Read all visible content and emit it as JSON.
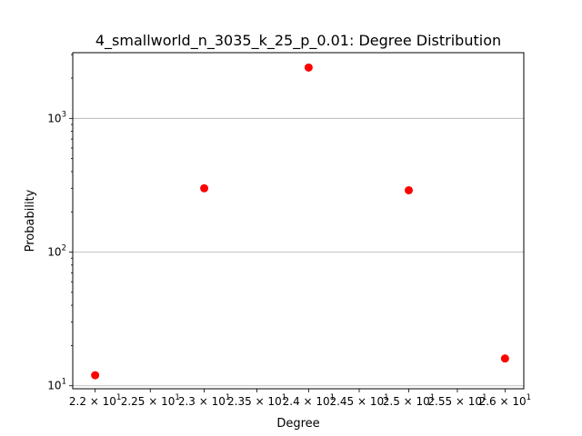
{
  "chart_data": {
    "type": "scatter",
    "title": "4_smallworld_n_3035_k_25_p_0.01: Degree Distribution",
    "xlabel": "Degree",
    "ylabel": "Probability",
    "x_scale": "log",
    "y_scale": "log",
    "xlim": [
      21.8,
      26.2
    ],
    "ylim": [
      9.5,
      3100
    ],
    "grid": "y-major",
    "marker_color": "#ff0000",
    "points": [
      {
        "x": 22,
        "y": 12
      },
      {
        "x": 23,
        "y": 300
      },
      {
        "x": 24,
        "y": 2400
      },
      {
        "x": 25,
        "y": 290
      },
      {
        "x": 26,
        "y": 16
      }
    ],
    "x_ticks": [
      {
        "value": 22,
        "mantissa": "2.2",
        "exp": "1"
      },
      {
        "value": 22.5,
        "mantissa": "2.25",
        "exp": "1"
      },
      {
        "value": 23,
        "mantissa": "2.3",
        "exp": "1"
      },
      {
        "value": 23.5,
        "mantissa": "2.35",
        "exp": "1"
      },
      {
        "value": 24,
        "mantissa": "2.4",
        "exp": "1"
      },
      {
        "value": 24.5,
        "mantissa": "2.45",
        "exp": "1"
      },
      {
        "value": 25,
        "mantissa": "2.5",
        "exp": "1"
      },
      {
        "value": 25.5,
        "mantissa": "2.55",
        "exp": "1"
      },
      {
        "value": 26,
        "mantissa": "2.6",
        "exp": "1"
      }
    ],
    "y_ticks": [
      {
        "value": 10,
        "base": "10",
        "exp": "1"
      },
      {
        "value": 100,
        "base": "10",
        "exp": "2"
      },
      {
        "value": 1000,
        "base": "10",
        "exp": "3"
      }
    ],
    "times_symbol": "×"
  }
}
